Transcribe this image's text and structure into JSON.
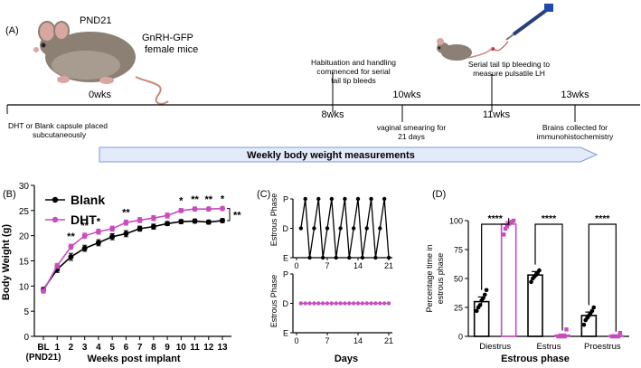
{
  "timeline": {
    "panel_label": "(A)",
    "mouse": {
      "age": "PND21",
      "strain_line1": "GnRH-GFP",
      "strain_line2": "female mice"
    },
    "weeks": [
      "0wks",
      "8wks",
      "10wks",
      "11wks",
      "13wks"
    ],
    "events": {
      "e0_line1": "DHT or Blank capsule placed",
      "e0_line2": "subcutaneously",
      "e8_line1": "Habituation and handling",
      "e8_line2": "commenced for serial",
      "e8_line3": "tail tip bleeds",
      "e10_line1": "vaginal smearing for",
      "e10_line2": "21 days",
      "e11_line1": "Serial tail tip bleeding to",
      "e11_line2": "measure pulsatile LH",
      "e13_line1": "Brains collected for",
      "e13_line2": "immunohistochemistry"
    },
    "arrow_label": "Weekly body weight measurements"
  },
  "colors": {
    "blank": "#000000",
    "dht": "#c74dbe",
    "arrow_fill": "#e3ebfb",
    "arrow_stroke": "#7f9ad6"
  },
  "chart_data": [
    {
      "panel_label": "(B)",
      "type": "line",
      "categories": [
        "BL\n(PND21)",
        "1",
        "2",
        "3",
        "4",
        "5",
        "6",
        "7",
        "8",
        "9",
        "10",
        "11",
        "12",
        "13"
      ],
      "series": [
        {
          "name": "Blank",
          "color": "#000000",
          "values": [
            9.3,
            13.3,
            15.8,
            17.5,
            18.6,
            19.8,
            20.4,
            21.4,
            21.8,
            22.4,
            22.8,
            22.9,
            22.7,
            23.0
          ],
          "errors": [
            0.4,
            0.6,
            0.7,
            0.6,
            0.6,
            0.6,
            0.6,
            0.5,
            0.5,
            0.4,
            0.4,
            0.4,
            0.4,
            0.4
          ]
        },
        {
          "name": "DHT",
          "color": "#c74dbe",
          "values": [
            9.0,
            14.0,
            17.8,
            20.0,
            20.8,
            21.4,
            22.6,
            23.1,
            23.5,
            24.0,
            25.0,
            25.3,
            25.3,
            25.4
          ],
          "errors": [
            0.4,
            0.5,
            0.5,
            0.5,
            0.5,
            0.5,
            0.5,
            0.5,
            0.5,
            0.5,
            0.4,
            0.4,
            0.4,
            0.4
          ]
        }
      ],
      "significance": [
        {
          "index": 2,
          "label": "**"
        },
        {
          "index": 3,
          "label": "**"
        },
        {
          "index": 4,
          "label": "*"
        },
        {
          "index": 6,
          "label": "**"
        },
        {
          "index": 10,
          "label": "*"
        },
        {
          "index": 11,
          "label": "**"
        },
        {
          "index": 12,
          "label": "**"
        },
        {
          "index": 13,
          "label": "*"
        }
      ],
      "overall_significance": "**",
      "xlabel": "Weeks post implant",
      "ylabel": "Body Weight (g)",
      "ylim": [
        0,
        30
      ],
      "yticks": [
        0,
        5,
        10,
        15,
        20,
        25,
        30
      ],
      "legend": {
        "placement": "top-left"
      }
    },
    {
      "panel_label": "(C)",
      "type": "line",
      "subplots": [
        {
          "series": "Blank",
          "color": "#000000",
          "x": [
            1,
            2,
            3,
            4,
            5,
            6,
            7,
            8,
            9,
            10,
            11,
            12,
            13,
            14,
            15,
            16,
            17,
            18,
            19,
            20,
            21
          ],
          "y": [
            "D",
            "P",
            "E",
            "D",
            "P",
            "E",
            "D",
            "P",
            "E",
            "D",
            "P",
            "E",
            "D",
            "P",
            "E",
            "D",
            "P",
            "E",
            "D",
            "P",
            "E"
          ]
        },
        {
          "series": "DHT",
          "color": "#c74dbe",
          "x": [
            1,
            2,
            3,
            4,
            5,
            6,
            7,
            8,
            9,
            10,
            11,
            12,
            13,
            14,
            15,
            16,
            17,
            18,
            19,
            20,
            21
          ],
          "y": [
            "D",
            "D",
            "D",
            "D",
            "D",
            "D",
            "D",
            "D",
            "D",
            "D",
            "D",
            "D",
            "D",
            "D",
            "D",
            "D",
            "D",
            "D",
            "D",
            "D",
            "D"
          ]
        }
      ],
      "ytick_labels": [
        "E",
        "D",
        "P"
      ],
      "xticks": [
        0,
        7,
        14,
        21
      ],
      "ylabel": "Estrous Phase",
      "xlabel": "Days"
    },
    {
      "panel_label": "(D)",
      "type": "bar",
      "categories": [
        "Diestrus",
        "Estrus",
        "Proestrus"
      ],
      "series": [
        {
          "name": "Blank",
          "color": "#000000",
          "values": [
            30,
            53,
            18
          ],
          "errors": [
            4,
            3,
            3
          ],
          "points": [
            [
              22,
              25,
              27,
              31,
              33,
              36,
              40
            ],
            [
              47,
              50,
              52,
              53,
              55,
              57
            ],
            [
              10,
              14,
              16,
              18,
              20,
              22,
              25
            ]
          ]
        },
        {
          "name": "DHT",
          "color": "#c74dbe",
          "values": [
            97,
            1,
            0.5
          ],
          "errors": [
            2,
            1,
            0.5
          ],
          "points": [
            [
              88,
              93,
              95,
              97,
              98,
              99,
              100
            ],
            [
              0,
              0,
              0,
              0,
              0,
              6
            ],
            [
              0,
              0,
              0,
              0,
              0,
              3
            ]
          ]
        }
      ],
      "significance": [
        "****",
        "****",
        "****"
      ],
      "xlabel": "Estrous phase",
      "ylabel_line1": "Percentage time in",
      "ylabel_line2": "estrous phase",
      "ylim": [
        0,
        100
      ],
      "yticks": [
        0,
        25,
        50,
        75,
        100
      ]
    }
  ]
}
